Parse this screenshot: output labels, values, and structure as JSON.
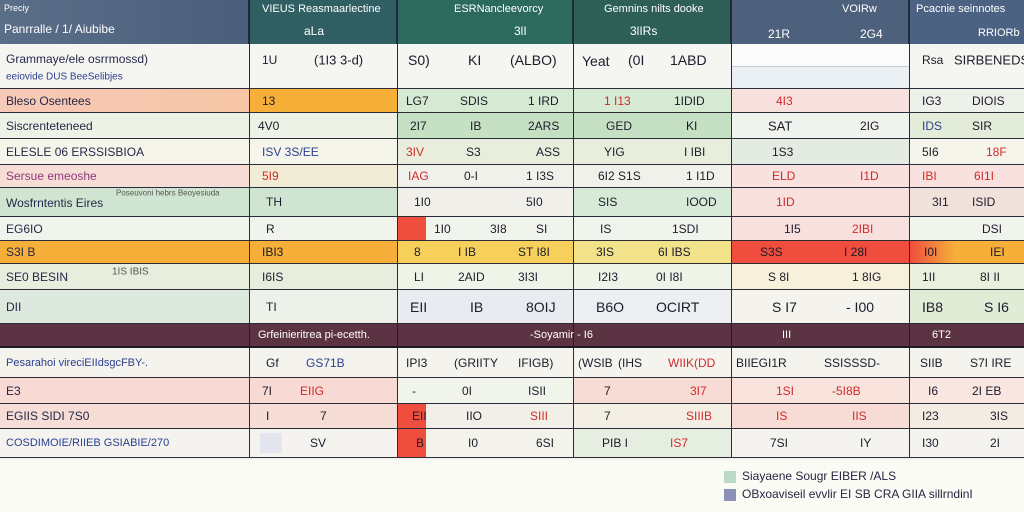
{
  "colors": {
    "header": "#4a5f7c",
    "header_teal": "#2c6a5d",
    "band_orange": "#f6b03a",
    "band_pink": "#f7d7d2",
    "band_green": "#c9e3cb",
    "band_mint": "#e2ecdd",
    "band_red": "#ef4e3e",
    "subheader": "#5b3342",
    "legend_mint": "#bcd9c6",
    "legend_lavender": "#8c8fb8"
  },
  "header": {
    "c1_top": "Preciy",
    "c1_bottom": "Panrralle  /  1/ Aiubibe",
    "c2_top": "VIEUS Reasmaarlectine",
    "c2_bottom": "aLa",
    "c3_top": "ESRNancleevorcy",
    "c3_mid": "3lI",
    "c4_top": "Gemnins nilts dooke",
    "c4_bottom": "3lIRs",
    "c5_top": "VOIRw",
    "c5_a": "21R",
    "c5_b": "2G4",
    "c6_top": "Pcacnie seinnotes",
    "c6_bottom": "RRIORb"
  },
  "rows": [
    {
      "c1": "Grammaye/ele osrrmossd)",
      "c1b": "eeiovide  DUS BeeSelibjes",
      "c2a": "1U",
      "c2b": "(1I3 3-d)",
      "c3a": "S0)",
      "c3b": "KI",
      "c3c": "(ALBO)",
      "c4a": "Yeat",
      "c4b": "(0I",
      "c4c": "1ABD",
      "c5": "",
      "c6a": "Rsa",
      "c6b": "SIRBENEDS"
    },
    {
      "c1": "Bleso Osentees",
      "c2a": "13",
      "c3a": "LG7",
      "c3b": "SDIS",
      "c3c": "1 IRD",
      "c4a": "1 I13",
      "c4b": "1IDID",
      "c5a": "4I3",
      "c6a": "IG3",
      "c6b": "DIOIS"
    },
    {
      "c1": "Siscrenteteneed",
      "c2a": "4V0",
      "c3a": "2I7",
      "c3b": "IB",
      "c3c": "2ARS",
      "c4a": "GED",
      "c4b": "KI",
      "c5a": "SAT",
      "c5b": "2IG",
      "c6a": "IDS",
      "c6b": "SIR"
    },
    {
      "c1": "ELESLE 06 ERSSISBIOA",
      "c2a": "ISV 3S/EE",
      "c3a": "3IV",
      "c3b": "S3",
      "c3c": "ASS",
      "c4a": "YIG",
      "c4b": "I IBI",
      "c5a": "1S3",
      "c6a": "5I6",
      "c6b": "18F"
    },
    {
      "c1": "Sersue emeoshe",
      "c2a": "5I9",
      "c3a": "IAG",
      "c3b": "0-I",
      "c3c": "1 I3S",
      "c4a": "6I2 S1S",
      "c4b": "1 I1D",
      "c5a": "ELD",
      "c5b": "I1D",
      "c6a": "IBI",
      "c6b": "6I1I"
    },
    {
      "c1": "Wosfrntentis Eires",
      "c1b": "Poseuvoni hebrs  Beoyesiuda",
      "c2a": "TH",
      "c3a": "1I0",
      "c3b": "",
      "c3c": "5I0",
      "c4a": "SIS",
      "c4b": "IOOD",
      "c5a": "1ID",
      "c6a": "3I1",
      "c6b": "ISID"
    },
    {
      "c1": "EG6IO",
      "c2a": "R",
      "c3a": "1I0",
      "c3b": "3I8",
      "c3c": "SI",
      "c4a": "IS",
      "c4b": "1SDI",
      "c5a": "1I5",
      "c5b": "2IBI",
      "c6a": "",
      "c6b": "DSI"
    },
    {
      "c1": "S3I  B",
      "c2a": "IBI3",
      "c3a": "8",
      "c3b": "I IB",
      "c3c": "ST I8I",
      "c4a": "3IS",
      "c4b": "6I IBS",
      "c5a": "S3S",
      "c5b": "I 28I",
      "c6a": "I0I",
      "c6b": "IEI"
    },
    {
      "c1": "SE0   BESIN",
      "c1b": "1IS  IBIS",
      "c2a": "I6IS",
      "c3a": "LI",
      "c3b": "2AID",
      "c3c": "3I3I",
      "c4a": "I2I3",
      "c4b": "0I I8I",
      "c5a": "S 8I",
      "c5b": "1 8IG",
      "c6a": "1II",
      "c6b": "8I II"
    },
    {
      "c1": "DII",
      "c2a": "TI",
      "c3a": "EII",
      "c3b": "IB",
      "c3c": "8OIJ",
      "c4a": "B6O",
      "c4b": "OCIRT",
      "c5a": "S I7",
      "c5b": "- I00",
      "c6a": "IB8",
      "c6b": "S I6"
    }
  ],
  "subheader": {
    "a": "Grfeinieritrea pi-ecetth.",
    "b": "-Soyamir - I6",
    "c": "III",
    "d": "6T2"
  },
  "rows2": [
    {
      "c1": "Pesarahoi  vireciEIIdsgcFBY-.",
      "c2a": "Gf",
      "c2b": "GS71B",
      "c3a": "IPI3",
      "c3b": "(GRIITY",
      "c3c": "IFIGB)",
      "c4a": "(WSIB",
      "c4b": "(IHS",
      "c4b2": "WIIK(DD",
      "c5a": "BIIEGI1R",
      "c5b": "SSISSSD-",
      "c6a": "SIIB",
      "c6b": "S7I IRE"
    },
    {
      "c1": "E3",
      "c2a": "7I",
      "c2b": "EIIG",
      "c3a": "-",
      "c3b": "0I",
      "c3c": "ISII",
      "c4a": "7",
      "c4b": "3I7",
      "c5a": "1SI",
      "c5b": "-5I8B",
      "c6a": "I6",
      "c6b": "2I EB"
    },
    {
      "c1": "EGIIS SIDI  7S0",
      "c2a": "I",
      "c2b": "7",
      "c3a": "EII",
      "c3b": "IIO",
      "c3c": "SIII",
      "c4a": "7",
      "c4b": "SIIIB",
      "c5a": "IS",
      "c5b": "IIS",
      "c6a": "I23",
      "c6b": "3IS"
    },
    {
      "c1": "COSDIMOIE/RIIEB  GSIABIE/270",
      "c2a": "",
      "c2b": "SV",
      "c3a": "B",
      "c3b": "I0",
      "c3c": "6SI",
      "c4a": "PIB I",
      "c4b": "IS7",
      "c5a": "7SI",
      "c5b": "IY",
      "c6a": "I30",
      "c6b": "2I"
    }
  ],
  "legend": [
    {
      "color": "#bcd9c6",
      "text": "Siayaene    Sougr EIBER /ALS"
    },
    {
      "color": "#8c8fb8",
      "text": "OBxoaviseil   evvlir EI SB  CRA  GIIA  sillrndinI"
    }
  ]
}
